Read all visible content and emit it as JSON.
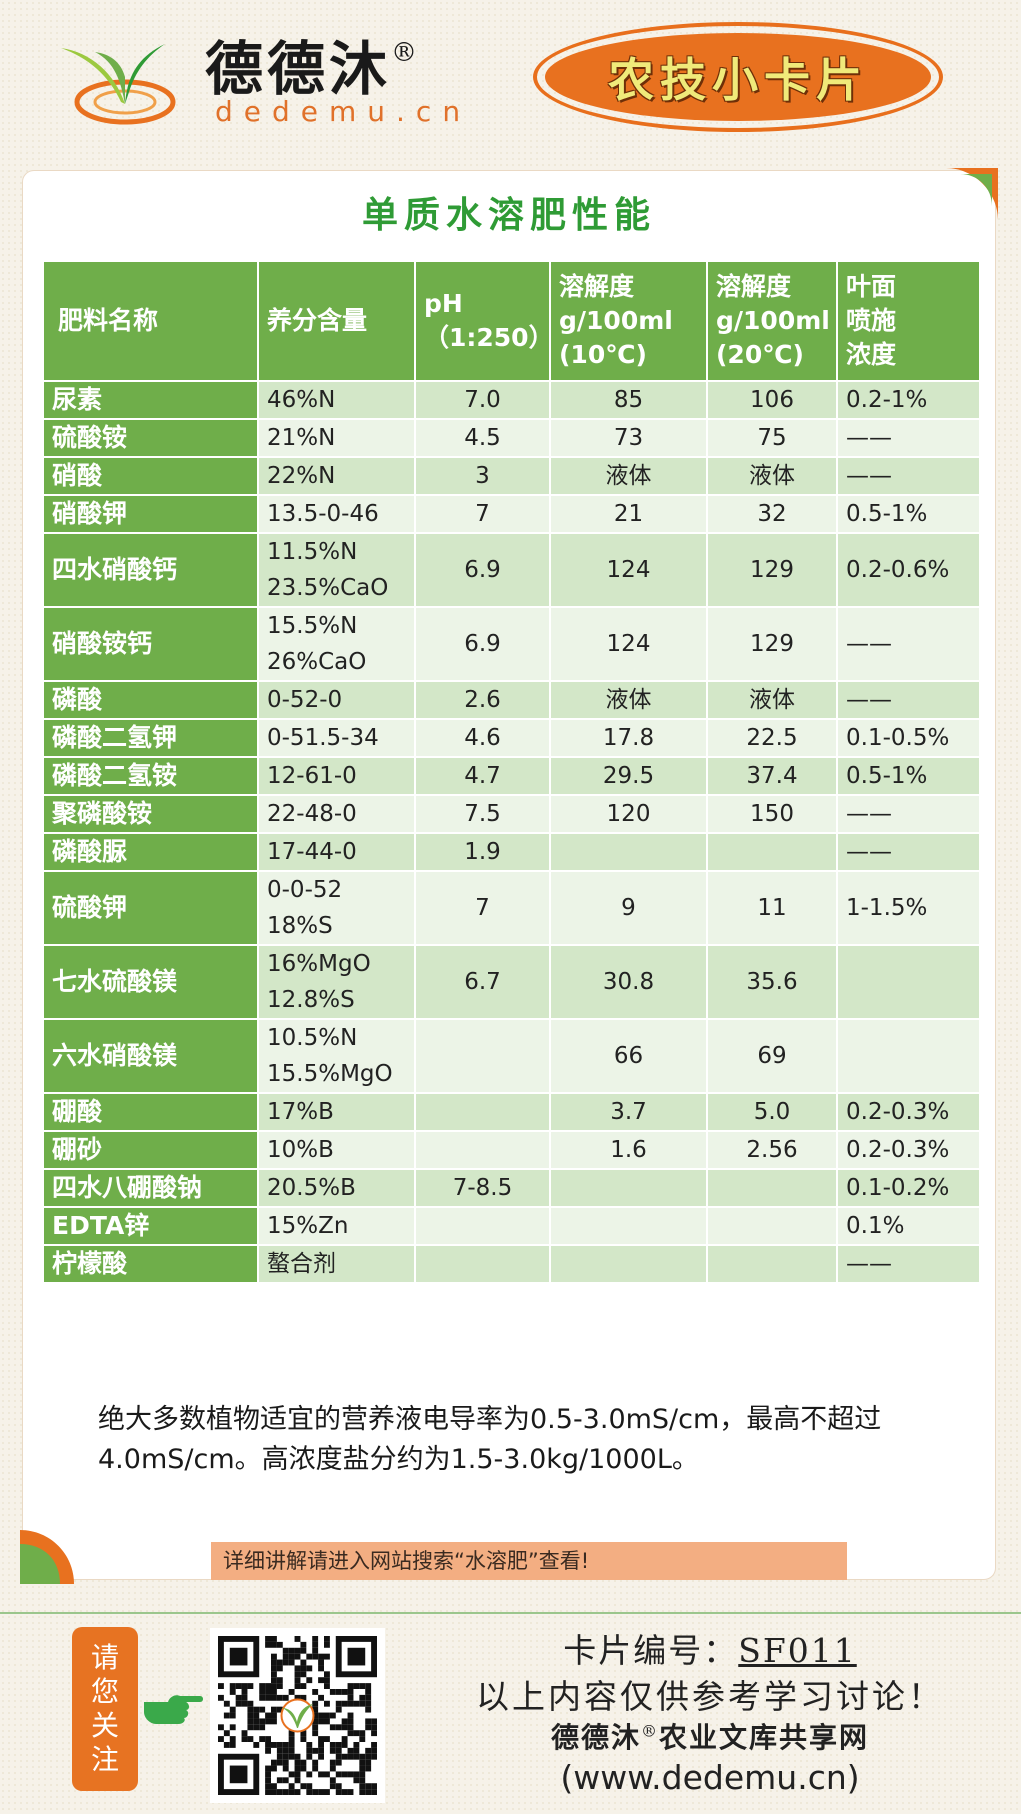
{
  "header": {
    "brand_name": "德德沐",
    "registered_mark": "®",
    "domain": "dedemu.cn",
    "badge": "农技小卡片"
  },
  "card": {
    "title": "单质水溶肥性能",
    "table": {
      "columns": [
        [
          "肥料名称"
        ],
        [
          "养分含量"
        ],
        [
          "pH",
          "（1:250）"
        ],
        [
          "溶解度",
          "g/100ml",
          "(10℃)"
        ],
        [
          "溶解度",
          "g/100ml",
          "(20℃)"
        ],
        [
          "叶面",
          "喷施",
          "浓度"
        ]
      ],
      "rows": [
        {
          "name": "尿素",
          "nutrient": [
            "46%N"
          ],
          "ph": "7.0",
          "sol10": "85",
          "sol20": "106",
          "foliar": "0.2-1%"
        },
        {
          "name": "硫酸铵",
          "nutrient": [
            "21%N"
          ],
          "ph": "4.5",
          "sol10": "73",
          "sol20": "75",
          "foliar": "——"
        },
        {
          "name": "硝酸",
          "nutrient": [
            "22%N"
          ],
          "ph": "3",
          "sol10": "液体",
          "sol20": "液体",
          "foliar": "——"
        },
        {
          "name": "硝酸钾",
          "nutrient": [
            "13.5-0-46"
          ],
          "ph": "7",
          "sol10": "21",
          "sol20": "32",
          "foliar": "0.5-1%"
        },
        {
          "name": "四水硝酸钙",
          "nutrient": [
            "11.5%N",
            "23.5%CaO"
          ],
          "ph": "6.9",
          "sol10": "124",
          "sol20": "129",
          "foliar": "0.2-0.6%"
        },
        {
          "name": "硝酸铵钙",
          "nutrient": [
            "15.5%N",
            "26%CaO"
          ],
          "ph": "6.9",
          "sol10": "124",
          "sol20": "129",
          "foliar": "——"
        },
        {
          "name": "磷酸",
          "nutrient": [
            "0-52-0"
          ],
          "ph": "2.6",
          "sol10": "液体",
          "sol20": "液体",
          "foliar": "——"
        },
        {
          "name": "磷酸二氢钾",
          "nutrient": [
            "0-51.5-34"
          ],
          "ph": "4.6",
          "sol10": "17.8",
          "sol20": "22.5",
          "foliar": "0.1-0.5%"
        },
        {
          "name": "磷酸二氢铵",
          "nutrient": [
            "12-61-0"
          ],
          "ph": "4.7",
          "sol10": "29.5",
          "sol20": "37.4",
          "foliar": "0.5-1%"
        },
        {
          "name": "聚磷酸铵",
          "nutrient": [
            "22-48-0"
          ],
          "ph": "7.5",
          "sol10": "120",
          "sol20": "150",
          "foliar": "——"
        },
        {
          "name": "磷酸脲",
          "nutrient": [
            "17-44-0"
          ],
          "ph": "1.9",
          "sol10": "",
          "sol20": "",
          "foliar": "——"
        },
        {
          "name": "硫酸钾",
          "nutrient": [
            "0-0-52",
            "18%S"
          ],
          "ph": "7",
          "sol10": "9",
          "sol20": "11",
          "foliar": "1-1.5%"
        },
        {
          "name": "七水硫酸镁",
          "nutrient": [
            "16%MgO",
            "12.8%S"
          ],
          "ph": "6.7",
          "sol10": "30.8",
          "sol20": "35.6",
          "foliar": ""
        },
        {
          "name": "六水硝酸镁",
          "nutrient": [
            "10.5%N",
            "15.5%MgO"
          ],
          "ph": "",
          "sol10": "66",
          "sol20": "69",
          "foliar": ""
        },
        {
          "name": "硼酸",
          "nutrient": [
            "17%B"
          ],
          "ph": "",
          "sol10": "3.7",
          "sol20": "5.0",
          "foliar": "0.2-0.3%"
        },
        {
          "name": "硼砂",
          "nutrient": [
            "10%B"
          ],
          "ph": "",
          "sol10": "1.6",
          "sol20": "2.56",
          "foliar": "0.2-0.3%"
        },
        {
          "name": "四水八硼酸钠",
          "nutrient": [
            "20.5%B"
          ],
          "ph": "7-8.5",
          "sol10": "",
          "sol20": "",
          "foliar": "0.1-0.2%"
        },
        {
          "name": "EDTA锌",
          "nutrient": [
            "15%Zn"
          ],
          "ph": "",
          "sol10": "",
          "sol20": "",
          "foliar": "0.1%"
        },
        {
          "name": "柠檬酸",
          "nutrient": [
            "螯合剂"
          ],
          "ph": "",
          "sol10": "",
          "sol20": "",
          "foliar": "——"
        }
      ]
    },
    "note": "绝大多数植物适宜的营养液电导率为0.5-3.0mS/cm，最高不超过4.0mS/cm。高浓度盐分约为1.5-3.0kg/1000L。",
    "tip": "详细讲解请进入网站搜索“水溶肥”查看!"
  },
  "footer": {
    "follow_label": [
      "请",
      "您",
      "关",
      "注"
    ],
    "card_no_label": "卡片编号：",
    "card_no": "SF011",
    "disclaimer": "以上内容仅供参考学习讨论！",
    "site_name": "德德沐",
    "site_suffix": "农业文库共享网",
    "url": "(www.dedemu.cn)"
  },
  "colors": {
    "header_green": "#6fae4a",
    "row_light": "#ecf4e7",
    "row_dark": "#d3e7c8",
    "title_green": "#2f9b35",
    "accent_orange": "#e8711f"
  },
  "icons": [
    "sprout-logo-icon",
    "pointing-hand-icon",
    "qr-code"
  ]
}
